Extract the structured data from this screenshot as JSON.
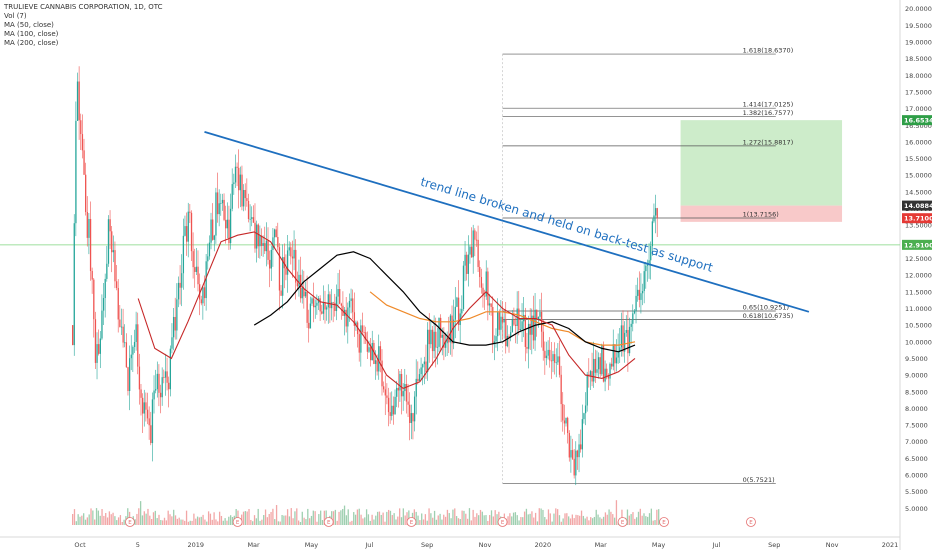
{
  "legend": {
    "title": "TRULIEVE CANNABIS CORPORATION, 1D, OTC",
    "vol": "Vol (7)",
    "ma50": "MA (50, close)",
    "ma100": "MA (100, close)",
    "ma200": "MA (200, close)"
  },
  "annotation": "trend line broken and held on back-test as support",
  "colors": {
    "up": "#26a69a",
    "down": "#ef5350",
    "trend": "#1e6fbf",
    "ma50": "#c62828",
    "ma100": "#ef8a2a",
    "ma200": "#000000",
    "target_zone": "#c8eac4",
    "stop_zone": "#f7c3c3",
    "hline": "#7fd67f"
  },
  "chart_data": {
    "type": "candlestick",
    "ylim": [
      4.5,
      20.2
    ],
    "y_ticks": [
      "20.0000",
      "19.5000",
      "19.0000",
      "18.5000",
      "18.0000",
      "17.5000",
      "17.0000",
      "16.5000",
      "16.0000",
      "15.5000",
      "15.0000",
      "14.5000",
      "14.0000",
      "13.5000",
      "13.0000",
      "12.5000",
      "12.0000",
      "11.5000",
      "11.0000",
      "10.5000",
      "10.0000",
      "9.5000",
      "9.0000",
      "8.5000",
      "8.0000",
      "7.5000",
      "7.0000",
      "6.5000",
      "6.0000",
      "5.5000",
      "5.0000"
    ],
    "x_ticks": [
      "Oct",
      "5",
      "2019",
      "Mar",
      "May",
      "Jul",
      "Sep",
      "Nov",
      "2020",
      "Mar",
      "May",
      "Jul",
      "Sep",
      "Nov",
      "2021"
    ],
    "price_tags": [
      {
        "label": "16.6534",
        "value": 16.6534,
        "color": "#2e9e47"
      },
      {
        "label": "14.0884",
        "value": 14.0884,
        "color": "#333333"
      },
      {
        "label": "13.7100",
        "value": 13.71,
        "color": "#e53935"
      },
      {
        "label": "12.9100",
        "value": 12.91,
        "color": "#4caf50"
      }
    ],
    "fib_levels": [
      {
        "label": "1.618(18.6370)",
        "value": 18.637
      },
      {
        "label": "1.414(17.0125)",
        "value": 17.0125
      },
      {
        "label": "1.382(16.7577)",
        "value": 16.7577
      },
      {
        "label": "1.272(15.8817)",
        "value": 15.8817
      },
      {
        "label": "1(13.7156)",
        "value": 13.7156
      },
      {
        "label": "0.65(10.9251)",
        "value": 10.9251
      },
      {
        "label": "0.618(10.6735)",
        "value": 10.6735
      },
      {
        "label": "0(5.7521)",
        "value": 5.7521
      }
    ],
    "horizontal_line": 12.91,
    "target_zone": [
      14.0884,
      16.6534
    ],
    "stop_zone": [
      13.6,
      14.0884
    ],
    "trend_line": [
      [
        0.16,
        16.3
      ],
      [
        0.89,
        10.9
      ]
    ],
    "close_path": [
      [
        0,
        10.5
      ],
      [
        0.005,
        18.1
      ],
      [
        0.012,
        15.5
      ],
      [
        0.02,
        13.0
      ],
      [
        0.028,
        9.2
      ],
      [
        0.036,
        11.2
      ],
      [
        0.044,
        13.8
      ],
      [
        0.052,
        12.0
      ],
      [
        0.06,
        9.8
      ],
      [
        0.068,
        8.9
      ],
      [
        0.076,
        10.2
      ],
      [
        0.084,
        8.2
      ],
      [
        0.092,
        7.1
      ],
      [
        0.1,
        8.3
      ],
      [
        0.108,
        9.0
      ],
      [
        0.116,
        8.7
      ],
      [
        0.124,
        10.8
      ],
      [
        0.132,
        12.5
      ],
      [
        0.14,
        13.6
      ],
      [
        0.148,
        12.0
      ],
      [
        0.156,
        11.2
      ],
      [
        0.164,
        12.6
      ],
      [
        0.172,
        13.9
      ],
      [
        0.18,
        14.5
      ],
      [
        0.188,
        13.0
      ],
      [
        0.196,
        15.8
      ],
      [
        0.204,
        14.2
      ],
      [
        0.212,
        13.6
      ],
      [
        0.22,
        13.0
      ],
      [
        0.228,
        13.2
      ],
      [
        0.236,
        12.6
      ],
      [
        0.244,
        12.9
      ],
      [
        0.252,
        11.8
      ],
      [
        0.26,
        12.6
      ],
      [
        0.268,
        12.3
      ],
      [
        0.276,
        11.4
      ],
      [
        0.284,
        11.0
      ],
      [
        0.292,
        10.7
      ],
      [
        0.3,
        11.3
      ],
      [
        0.308,
        11.1
      ],
      [
        0.316,
        10.9
      ],
      [
        0.324,
        11.2
      ],
      [
        0.332,
        10.6
      ],
      [
        0.34,
        11.0
      ],
      [
        0.348,
        10.0
      ],
      [
        0.356,
        10.3
      ],
      [
        0.364,
        9.2
      ],
      [
        0.372,
        9.5
      ],
      [
        0.38,
        8.0
      ],
      [
        0.388,
        7.8
      ],
      [
        0.396,
        8.6
      ],
      [
        0.404,
        8.2
      ],
      [
        0.412,
        8.0
      ],
      [
        0.42,
        8.8
      ],
      [
        0.428,
        9.8
      ],
      [
        0.436,
        10.2
      ],
      [
        0.444,
        10.4
      ],
      [
        0.452,
        10.1
      ],
      [
        0.46,
        10.3
      ],
      [
        0.468,
        11.2
      ],
      [
        0.476,
        12.6
      ],
      [
        0.484,
        13.2
      ],
      [
        0.492,
        12.0
      ],
      [
        0.5,
        11.5
      ],
      [
        0.508,
        10.4
      ],
      [
        0.516,
        11.0
      ],
      [
        0.524,
        10.2
      ],
      [
        0.532,
        10.6
      ],
      [
        0.54,
        11.0
      ],
      [
        0.548,
        10.3
      ],
      [
        0.556,
        10.5
      ],
      [
        0.564,
        10.8
      ],
      [
        0.572,
        9.8
      ],
      [
        0.58,
        9.9
      ],
      [
        0.588,
        8.8
      ],
      [
        0.596,
        7.2
      ],
      [
        0.604,
        5.9
      ],
      [
        0.612,
        6.8
      ],
      [
        0.62,
        8.5
      ],
      [
        0.628,
        9.2
      ],
      [
        0.636,
        9.5
      ],
      [
        0.644,
        9.0
      ],
      [
        0.652,
        9.8
      ],
      [
        0.66,
        10.2
      ],
      [
        0.668,
        10.0
      ],
      [
        0.676,
        10.6
      ],
      [
        0.684,
        11.2
      ],
      [
        0.692,
        12.3
      ],
      [
        0.7,
        13.4
      ],
      [
        0.708,
        13.71
      ]
    ],
    "ma50_path": [
      [
        0.08,
        11.3
      ],
      [
        0.1,
        9.8
      ],
      [
        0.12,
        9.5
      ],
      [
        0.14,
        10.6
      ],
      [
        0.16,
        11.8
      ],
      [
        0.18,
        13.0
      ],
      [
        0.2,
        13.2
      ],
      [
        0.22,
        13.3
      ],
      [
        0.24,
        13.0
      ],
      [
        0.26,
        12.2
      ],
      [
        0.28,
        11.6
      ],
      [
        0.3,
        11.2
      ],
      [
        0.32,
        11.1
      ],
      [
        0.34,
        10.6
      ],
      [
        0.36,
        9.9
      ],
      [
        0.38,
        9.0
      ],
      [
        0.4,
        8.6
      ],
      [
        0.42,
        8.8
      ],
      [
        0.44,
        9.5
      ],
      [
        0.46,
        10.4
      ],
      [
        0.48,
        11.0
      ],
      [
        0.5,
        11.5
      ],
      [
        0.52,
        11.0
      ],
      [
        0.54,
        10.7
      ],
      [
        0.56,
        10.7
      ],
      [
        0.58,
        10.5
      ],
      [
        0.6,
        9.6
      ],
      [
        0.62,
        9.0
      ],
      [
        0.64,
        8.9
      ],
      [
        0.66,
        9.1
      ],
      [
        0.68,
        9.5
      ]
    ],
    "ma100_path": [
      [
        0.36,
        11.5
      ],
      [
        0.38,
        11.1
      ],
      [
        0.4,
        10.9
      ],
      [
        0.42,
        10.7
      ],
      [
        0.44,
        10.6
      ],
      [
        0.46,
        10.6
      ],
      [
        0.48,
        10.7
      ],
      [
        0.5,
        10.9
      ],
      [
        0.52,
        10.9
      ],
      [
        0.54,
        10.8
      ],
      [
        0.56,
        10.6
      ],
      [
        0.58,
        10.4
      ],
      [
        0.6,
        10.3
      ],
      [
        0.62,
        10.0
      ],
      [
        0.64,
        9.9
      ],
      [
        0.66,
        9.9
      ],
      [
        0.68,
        10.0
      ]
    ],
    "ma200_path": [
      [
        0.22,
        10.5
      ],
      [
        0.24,
        10.8
      ],
      [
        0.26,
        11.2
      ],
      [
        0.28,
        11.8
      ],
      [
        0.3,
        12.2
      ],
      [
        0.32,
        12.6
      ],
      [
        0.34,
        12.7
      ],
      [
        0.36,
        12.5
      ],
      [
        0.38,
        12.0
      ],
      [
        0.4,
        11.5
      ],
      [
        0.42,
        10.9
      ],
      [
        0.44,
        10.5
      ],
      [
        0.46,
        10.0
      ],
      [
        0.48,
        9.9
      ],
      [
        0.5,
        9.9
      ],
      [
        0.52,
        10.0
      ],
      [
        0.54,
        10.3
      ],
      [
        0.56,
        10.5
      ],
      [
        0.58,
        10.6
      ],
      [
        0.6,
        10.4
      ],
      [
        0.62,
        10.0
      ],
      [
        0.64,
        9.8
      ],
      [
        0.66,
        9.7
      ],
      [
        0.68,
        9.9
      ]
    ]
  }
}
